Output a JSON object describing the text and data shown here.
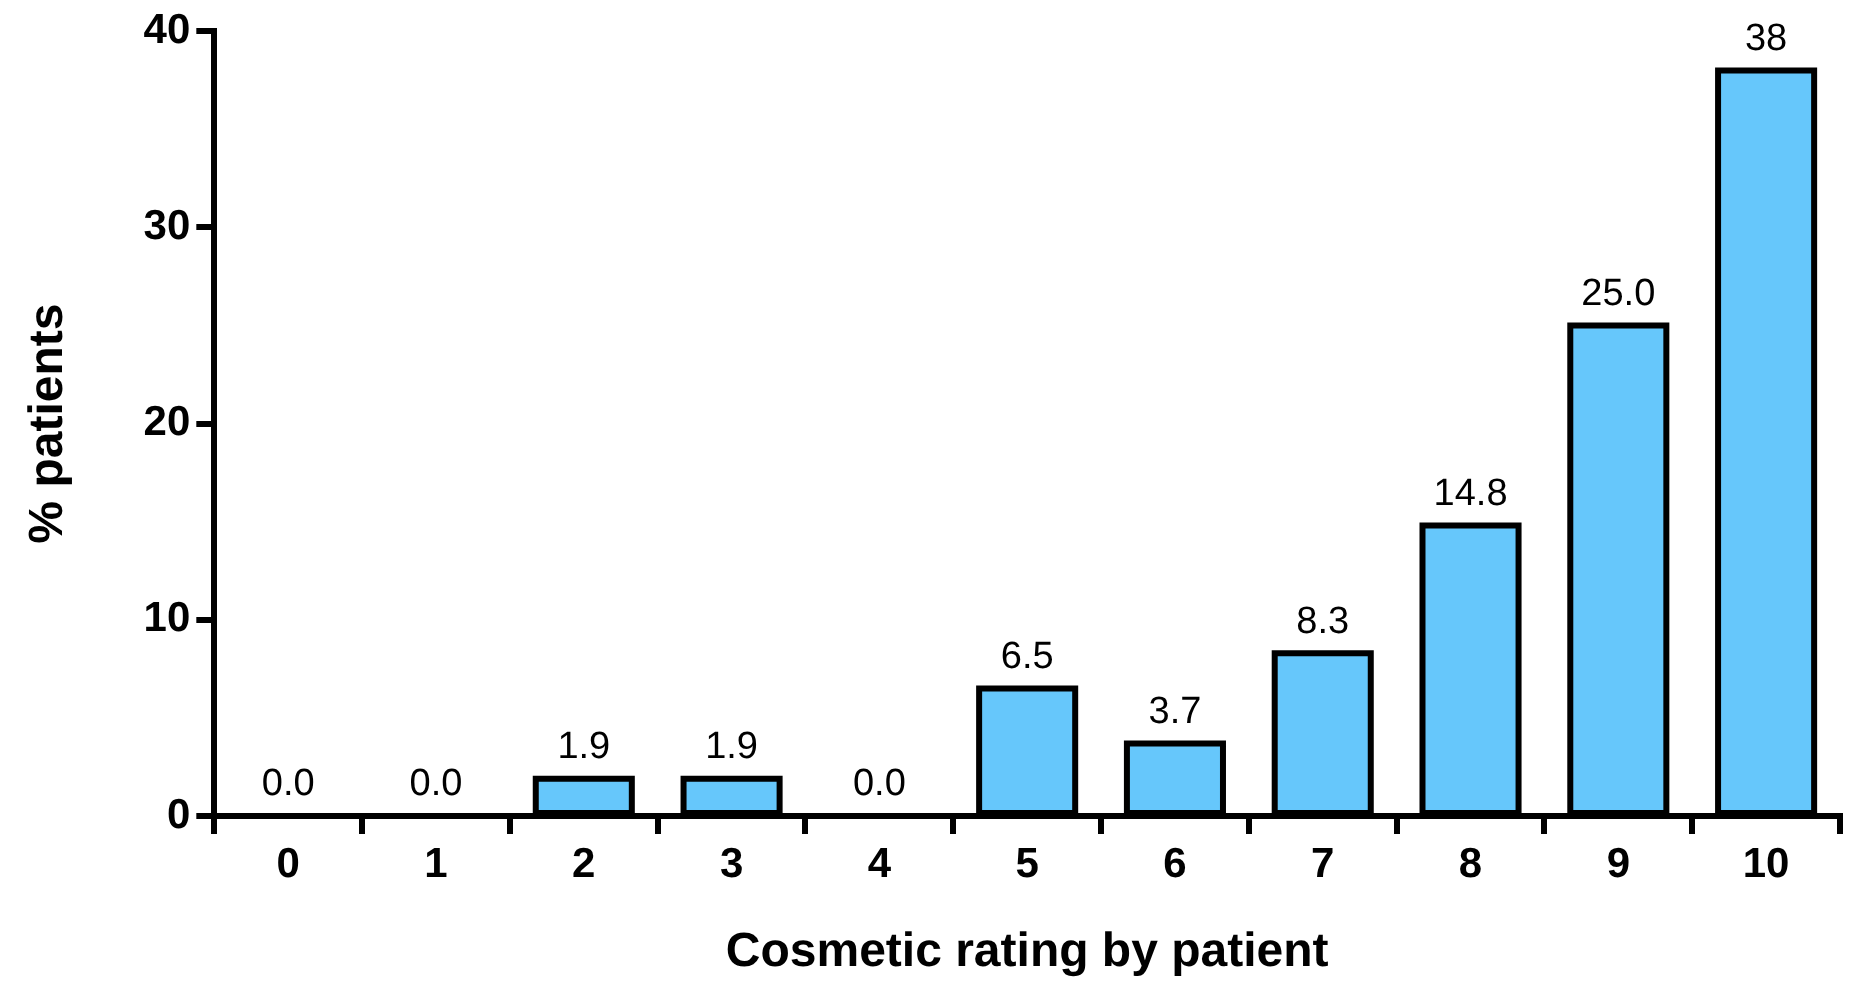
{
  "chart_data": {
    "type": "bar",
    "xlabel": "Cosmetic rating by patient",
    "ylabel": "% patients",
    "categories": [
      "0",
      "1",
      "2",
      "3",
      "4",
      "5",
      "6",
      "7",
      "8",
      "9",
      "10"
    ],
    "values": [
      0,
      0,
      1.9,
      1.9,
      0,
      6.5,
      3.7,
      8.3,
      14.8,
      25.0,
      38
    ],
    "value_labels": [
      "0.0",
      "0.0",
      "1.9",
      "1.9",
      "0.0",
      "6.5",
      "3.7",
      "8.3",
      "14.8",
      "25.0",
      "38"
    ],
    "color": "#66c7fb",
    "ylim": [
      0,
      40
    ],
    "yticks": [
      0,
      10,
      20,
      30,
      40
    ],
    "grid": false,
    "legend": false
  }
}
